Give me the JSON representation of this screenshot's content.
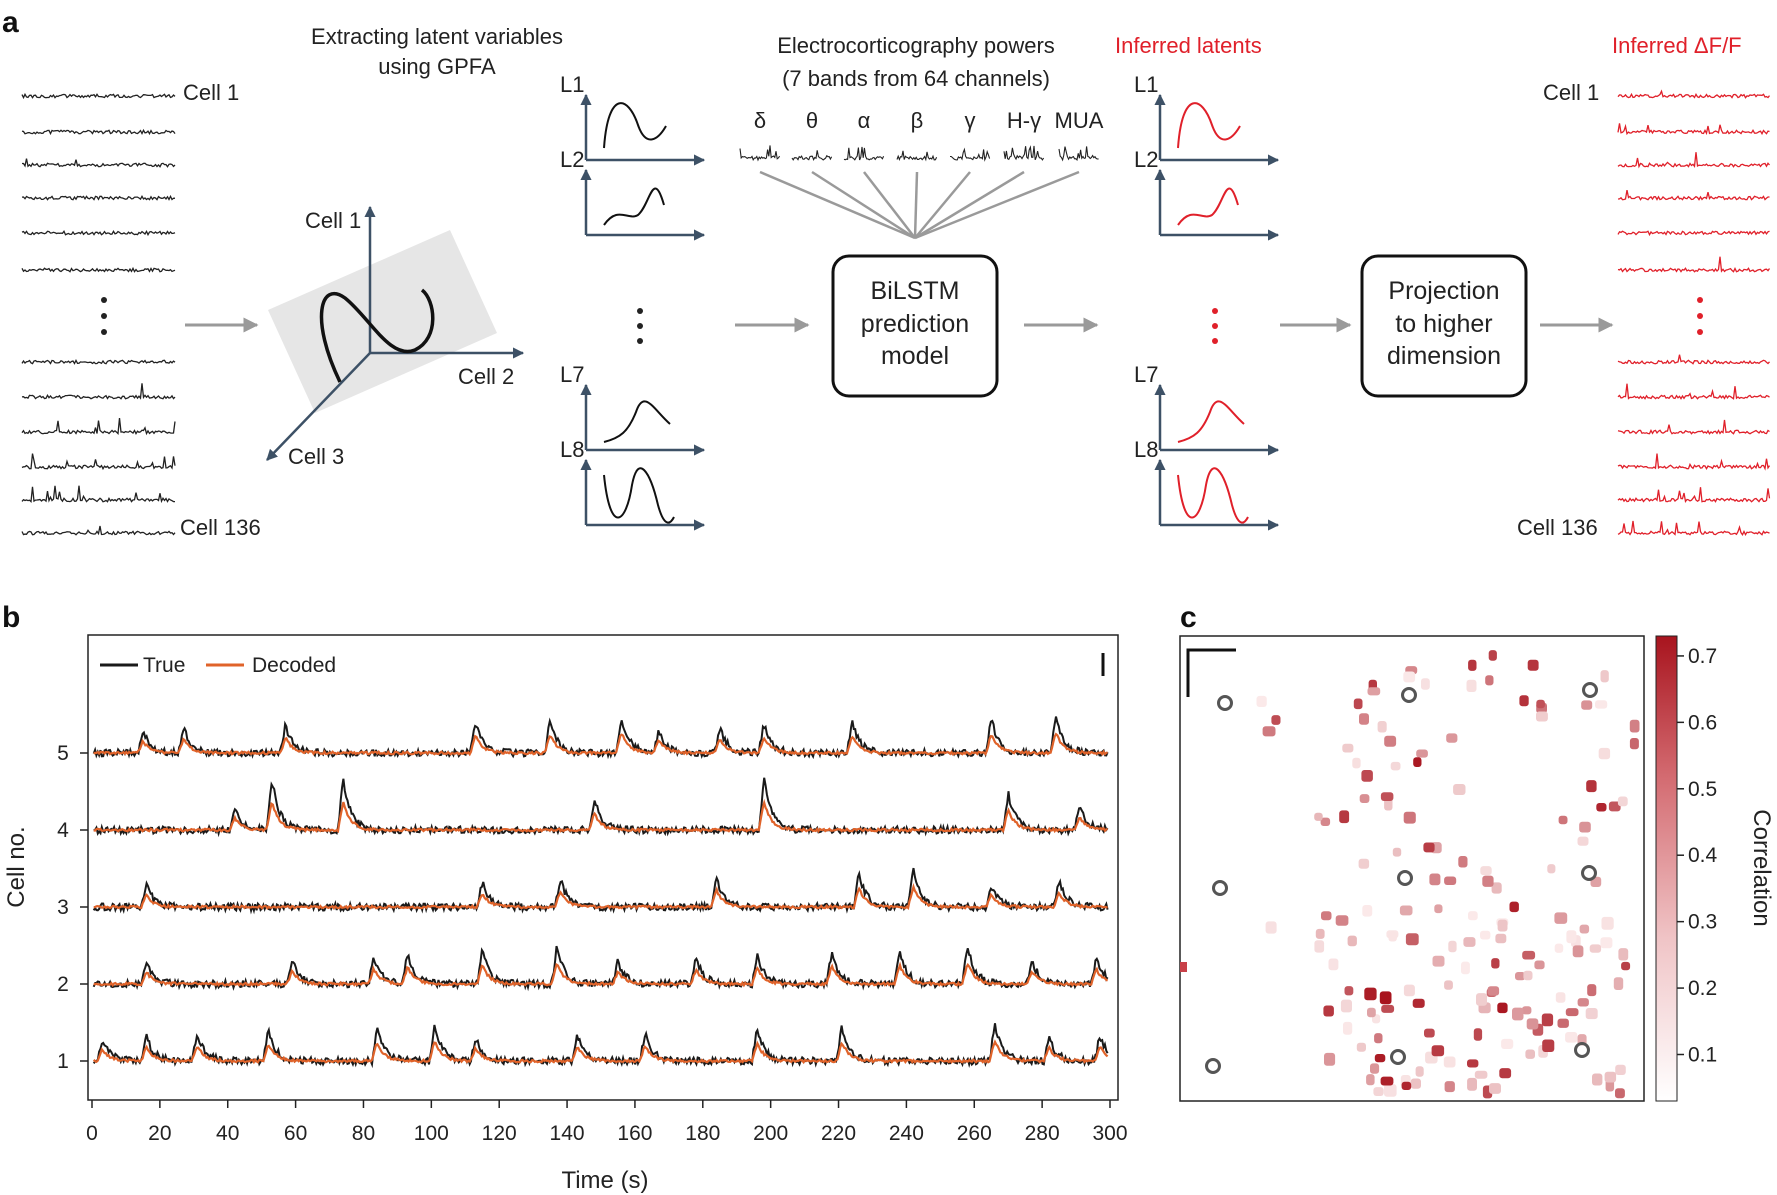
{
  "panel_a": {
    "label": "a",
    "gpfa_title_line1": "Extracting latent variables",
    "gpfa_title_line2": "using GPFA",
    "ecog_title_line1": "Electrocorticography powers",
    "ecog_title_line2": "(7 bands from 64 channels)",
    "inferred_latents_title": "Inferred latents",
    "inferred_dff_title": "Inferred ΔF/F",
    "cell_first": "Cell 1",
    "cell_last": "Cell 136",
    "axis_cell1": "Cell 1",
    "axis_cell2": "Cell 2",
    "axis_cell3": "Cell 3",
    "latent_labels": [
      "L1",
      "L2",
      "L7",
      "L8"
    ],
    "bands": [
      "δ",
      "θ",
      "α",
      "β",
      "γ",
      "H-γ",
      "MUA"
    ],
    "model_box": [
      "BiLSTM",
      "prediction",
      "model"
    ],
    "projection_box": [
      "Projection",
      "to higher",
      "dimension"
    ],
    "colors": {
      "black_trace": "#222222",
      "red": "#e0202a",
      "arrow": "#9a9a9a",
      "axis": "#3d5166"
    }
  },
  "panel_b": {
    "label": "b",
    "chart_data": {
      "type": "line",
      "xlabel": "Time (s)",
      "ylabel": "Cell no.",
      "xlim": [
        0,
        300
      ],
      "x_ticks": [
        0,
        20,
        40,
        60,
        80,
        100,
        120,
        140,
        160,
        180,
        200,
        220,
        240,
        260,
        280,
        300
      ],
      "y_ticks": [
        1,
        2,
        3,
        4,
        5
      ],
      "legend_position": "top-left",
      "series": [
        {
          "name": "True",
          "color": "#1a1a1a"
        },
        {
          "name": "Decoded",
          "color": "#e0632a"
        }
      ],
      "peak_times_by_cell": {
        "5": [
          15,
          27,
          57,
          113,
          135,
          156,
          167,
          185,
          198,
          224,
          265,
          284
        ],
        "4": [
          42,
          53,
          74,
          148,
          198,
          270,
          291
        ],
        "3": [
          16,
          115,
          138,
          184,
          226,
          242,
          265,
          285
        ],
        "2": [
          16,
          59,
          83,
          93,
          115,
          137,
          155,
          178,
          196,
          218,
          238,
          258,
          277,
          296
        ],
        "1": [
          3,
          16,
          31,
          52,
          84,
          101,
          113,
          143,
          163,
          196,
          221,
          266,
          282,
          297
        ]
      }
    }
  },
  "panel_c": {
    "label": "c",
    "colorbar_title": "Correlation",
    "colorbar_ticks": [
      "0.7",
      "0.6",
      "0.5",
      "0.4",
      "0.3",
      "0.2",
      "0.1"
    ],
    "colorbar_range": [
      0.03,
      0.73
    ],
    "colors": {
      "high": "#a8141e",
      "low": "#fbeaea",
      "circle": "#555555"
    }
  }
}
